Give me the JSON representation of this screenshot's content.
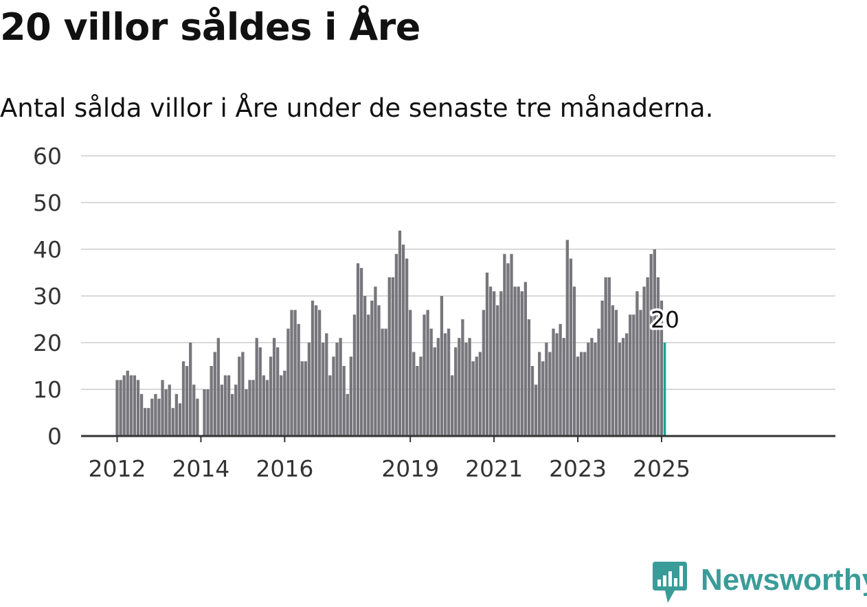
{
  "title": "20 villor såldes i Åre",
  "subtitle": "Antal sålda villor i Åre under de senaste tre månaderna.",
  "brand": {
    "name": "Newsworthy",
    "color": "#3a9c98"
  },
  "colors": {
    "bar": "#76767c",
    "highlight": "#17a397",
    "grid": "#d9d9d9",
    "axis": "#333333",
    "text": "#333333"
  },
  "chart_data": {
    "type": "bar",
    "title": "20 villor såldes i Åre",
    "subtitle": "Antal sålda villor i Åre under de senaste tre månaderna.",
    "xlabel": "",
    "ylabel": "",
    "ylim": [
      0,
      60
    ],
    "yticks": [
      0,
      10,
      20,
      30,
      40,
      50,
      60
    ],
    "grid": true,
    "x_start": "2012-01",
    "x_end": "2025-02",
    "xticks": [
      {
        "label": "2012",
        "date": "2012-01"
      },
      {
        "label": "2014",
        "date": "2014-01"
      },
      {
        "label": "2016",
        "date": "2016-01"
      },
      {
        "label": "2019",
        "date": "2019-01"
      },
      {
        "label": "2021",
        "date": "2021-01"
      },
      {
        "label": "2023",
        "date": "2023-01"
      },
      {
        "label": "2025",
        "date": "2025-01"
      }
    ],
    "values": [
      12,
      12,
      13,
      14,
      13,
      13,
      12,
      9,
      6,
      6,
      8,
      9,
      8,
      12,
      10,
      11,
      6,
      9,
      7,
      16,
      15,
      20,
      11,
      8,
      null,
      10,
      10,
      15,
      18,
      21,
      11,
      13,
      13,
      9,
      11,
      17,
      18,
      10,
      12,
      12,
      21,
      19,
      13,
      12,
      17,
      21,
      19,
      13,
      14,
      23,
      27,
      27,
      24,
      16,
      16,
      20,
      29,
      28,
      27,
      20,
      22,
      13,
      17,
      20,
      21,
      15,
      9,
      17,
      26,
      37,
      36,
      30,
      26,
      29,
      32,
      28,
      23,
      23,
      34,
      34,
      39,
      44,
      41,
      38,
      27,
      18,
      15,
      17,
      26,
      27,
      23,
      19,
      21,
      30,
      22,
      23,
      13,
      19,
      21,
      25,
      20,
      21,
      16,
      17,
      18,
      27,
      35,
      32,
      31,
      28,
      31,
      39,
      37,
      39,
      32,
      32,
      31,
      33,
      25,
      15,
      11,
      18,
      16,
      20,
      18,
      23,
      22,
      24,
      21,
      42,
      38,
      32,
      17,
      18,
      18,
      20,
      21,
      20,
      23,
      29,
      34,
      34,
      28,
      27,
      20,
      21,
      22,
      26,
      26,
      31,
      27,
      32,
      34,
      39,
      40,
      34,
      29,
      20
    ],
    "highlight": {
      "date": "2025-02",
      "value": 20,
      "label": "20"
    }
  }
}
